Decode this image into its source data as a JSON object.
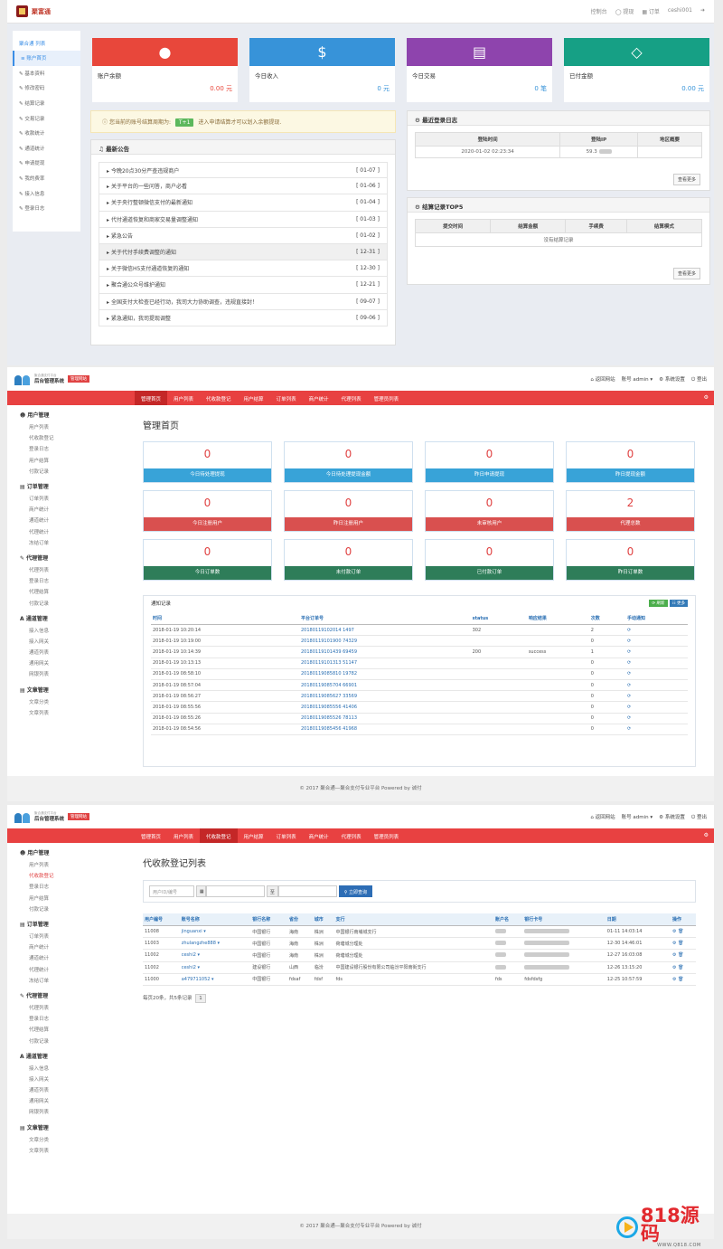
{
  "s1": {
    "brand": "聚富通",
    "topnav": [
      "控制台",
      "提现",
      "订单",
      "ceshi001",
      "退出"
    ],
    "side_title": "聚合通 列表",
    "side_items": [
      "账户首页",
      "基本资料",
      "修改密码",
      "结算记录",
      "交易记录",
      "收款统计",
      "通道统计",
      "申请提现",
      "我的费率",
      "接入信息",
      "登录日志"
    ],
    "stats": [
      {
        "label": "账户余额",
        "value": "0.00 元",
        "color": "#e8473b",
        "icon": "user-icon"
      },
      {
        "label": "今日收入",
        "value": "0 元",
        "color": "#3793d9",
        "icon": "dollar-icon"
      },
      {
        "label": "今日交易",
        "value": "0 笔",
        "color": "#8e44ad",
        "icon": "bar-chart-icon"
      },
      {
        "label": "已付金额",
        "value": "0.00 元",
        "color": "#16a085",
        "icon": "diamond-icon"
      }
    ],
    "notice_pre": "您当前的账号结算周期为:",
    "notice_badge": "T+1",
    "notice_post": "进入申请结算才可以划入余额提现.",
    "ann_title": "最新公告",
    "announcements": [
      {
        "t": "今晚20点30分严查违规商户",
        "d": "[ 01-07 ]"
      },
      {
        "t": "关于平台的一些问答，商户必看",
        "d": "[ 01-06 ]"
      },
      {
        "t": "关于央行整顿微信支付的最新通知",
        "d": "[ 01-04 ]"
      },
      {
        "t": "代付通道恢复和商家交易量调整通知",
        "d": "[ 01-03 ]"
      },
      {
        "t": "紧急公告",
        "d": "[ 01-02 ]"
      },
      {
        "t": "关于代付手续费调整的通知",
        "d": "[ 12-31 ]"
      },
      {
        "t": "关于微信H5支付通道恢复的通知",
        "d": "[ 12-30 ]"
      },
      {
        "t": "聚合通公众号维护通知",
        "d": "[ 12-21 ]"
      },
      {
        "t": "全国支付大检查已经行动，我司大力协助调查，违规直接封！",
        "d": "[ 09-07 ]"
      },
      {
        "t": "紧急通知，我司提现调整",
        "d": "[ 09-06 ]"
      }
    ],
    "login_title": "最近登录日志",
    "login_headers": [
      "登陆时间",
      "登陆IP",
      "地区概要"
    ],
    "login_row": [
      "2020-01-02 02:23:34",
      "59.3",
      "",
      ""
    ],
    "settle_title": "结算记录TOP5",
    "settle_headers": [
      "提交时间",
      "结算金额",
      "手续费",
      "结算模式"
    ],
    "settle_empty": "没有结算记录",
    "more": "查看更多"
  },
  "adm": {
    "logo_small": "聚合通支付平台",
    "logo": "后台管理系统",
    "tag": "管理网站",
    "right": [
      "返回网站",
      "账号 admin",
      "系统设置",
      "登出"
    ],
    "nav": [
      "管理首页",
      "用户列表",
      "代收款登记",
      "用户结算",
      "订单列表",
      "商户统计",
      "代理列表",
      "管理员列表"
    ],
    "side": [
      {
        "h": "用户管理",
        "items": [
          "用户列表",
          "代收款登记",
          "登录日志",
          "用户结算",
          "付款记录"
        ]
      },
      {
        "h": "订单管理",
        "items": [
          "订单列表",
          "商户统计",
          "通道统计",
          "代理统计",
          "冻结订单"
        ]
      },
      {
        "h": "代理管理",
        "items": [
          "代理列表",
          "登录日志",
          "代理结算",
          "付款记录"
        ]
      },
      {
        "h": "通道管理",
        "items": [
          "接入信息",
          "接入网关",
          "通道列表",
          "通用网关",
          "网银列表"
        ]
      },
      {
        "h": "文章管理",
        "items": [
          "文章分类",
          "文章列表"
        ]
      }
    ],
    "footer": "© 2017 聚合通—聚合支付专业平台 Powered by 诚付"
  },
  "s2": {
    "title": "管理首页",
    "boxes": [
      {
        "n": "0",
        "l": "今日待处理提现",
        "c": "#38a3d8"
      },
      {
        "n": "0",
        "l": "今日待处理提现金额",
        "c": "#38a3d8"
      },
      {
        "n": "0",
        "l": "昨日申请提现",
        "c": "#38a3d8"
      },
      {
        "n": "0",
        "l": "昨日提现金额",
        "c": "#38a3d8"
      },
      {
        "n": "0",
        "l": "今日注册用户",
        "c": "#d9504f"
      },
      {
        "n": "0",
        "l": "昨日注册用户",
        "c": "#d9504f"
      },
      {
        "n": "0",
        "l": "未审核用户",
        "c": "#d9504f"
      },
      {
        "n": "2",
        "l": "代理总数",
        "c": "#d9504f"
      },
      {
        "n": "0",
        "l": "今日订单数",
        "c": "#2e7d59"
      },
      {
        "n": "0",
        "l": "未付款订单",
        "c": "#2e7d59"
      },
      {
        "n": "0",
        "l": "已付款订单",
        "c": "#2e7d59"
      },
      {
        "n": "0",
        "l": "昨日订单数",
        "c": "#2e7d59"
      }
    ],
    "notify_title": "通知记录",
    "btn_refresh": "刷新",
    "btn_more": "更多",
    "notify_headers": [
      "时间",
      "平台订单号",
      "status",
      "响应结果",
      "次数",
      "手动通知"
    ],
    "notify_rows": [
      [
        "2018-01-19 10:20:14",
        "20180119102014 1497",
        "302",
        "",
        "2"
      ],
      [
        "2018-01-19 10:19:00",
        "20180119101900 74329",
        "",
        "",
        "0"
      ],
      [
        "2018-01-19 10:14:39",
        "20180119101439 69459",
        "200",
        "success",
        "1"
      ],
      [
        "2018-01-19 10:13:13",
        "20180119101313 51147",
        "",
        "",
        "0"
      ],
      [
        "2018-01-19 08:58:10",
        "20180119085810 19782",
        "",
        "",
        "0"
      ],
      [
        "2018-01-19 08:57:04",
        "20180119085704 66901",
        "",
        "",
        "0"
      ],
      [
        "2018-01-19 08:56:27",
        "20180119085627 33569",
        "",
        "",
        "0"
      ],
      [
        "2018-01-19 08:55:56",
        "20180119085556 41406",
        "",
        "",
        "0"
      ],
      [
        "2018-01-19 08:55:26",
        "20180119085526 78113",
        "",
        "",
        "0"
      ],
      [
        "2018-01-19 08:54:56",
        "20180119085456 41968",
        "",
        "",
        "0"
      ]
    ]
  },
  "s3": {
    "title": "代收款登记列表",
    "ph_user": "用户ID/编号",
    "to": "至",
    "search": "立即查询",
    "headers": [
      "用户编号",
      "账号名称",
      "银行名称",
      "省份",
      "城市",
      "支行",
      "账户名",
      "银行卡号",
      "日期",
      "操作"
    ],
    "rows": [
      [
        "11008",
        "jinguanxi",
        "中国银行",
        "海南",
        "株洲",
        "中国银行南埔城支行",
        "",
        "",
        "01-11 14:03:14"
      ],
      [
        "11003",
        "zhulangzhe888",
        "中国银行",
        "海南",
        "株洲",
        "荷塘城分理处",
        "",
        "",
        "12-30 14:46:01"
      ],
      [
        "11002",
        "ceshi2",
        "中国银行",
        "海南",
        "株洲",
        "荷塘城分理处",
        "",
        "",
        "12-27 16:03:08"
      ],
      [
        "11002",
        "ceshi2",
        "建设银行",
        "山西",
        "临汾",
        "中国建设银行股份有限公司临汾平阳南街支行",
        "",
        "",
        "12-26 13:15:20"
      ],
      [
        "11000",
        "a479711052",
        "中国银行",
        "fdsaf",
        "fdsf",
        "fds",
        "fds",
        "fdsfdsfg",
        "12-25 10:57:59"
      ]
    ],
    "pager": "每页20条，共5条记录",
    "page": "1"
  }
}
